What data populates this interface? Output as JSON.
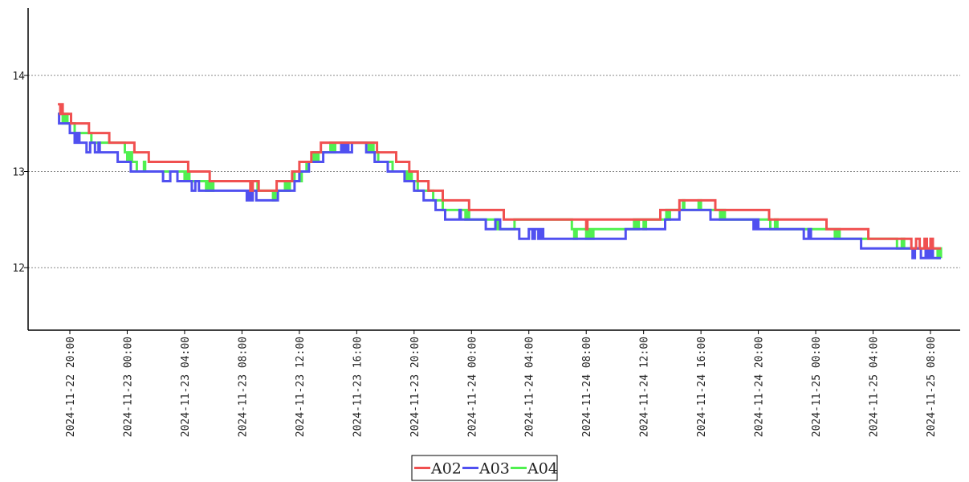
{
  "chart_data": {
    "type": "line",
    "step": true,
    "xlabel": "",
    "ylabel": "",
    "x_unit": "datetime",
    "x_range": [
      "2024-11-22 18:51",
      "2024-11-25 08:44"
    ],
    "ylim": [
      11.35,
      14.7
    ],
    "y_ticks": [
      12,
      13,
      14
    ],
    "x_ticks": [
      "2024-11-22 20:00",
      "2024-11-23 00:00",
      "2024-11-23 04:00",
      "2024-11-23 08:00",
      "2024-11-23 12:00",
      "2024-11-23 16:00",
      "2024-11-23 20:00",
      "2024-11-24 00:00",
      "2024-11-24 04:00",
      "2024-11-24 08:00",
      "2024-11-24 12:00",
      "2024-11-24 16:00",
      "2024-11-24 20:00",
      "2024-11-25 00:00",
      "2024-11-25 04:00",
      "2024-11-25 08:00"
    ],
    "grid": "horizontal-dotted",
    "legend": "bottom-center",
    "series": [
      {
        "name": "A02",
        "color": "#f05050",
        "points": [
          [
            "2024-11-22 19:10",
            13.7
          ],
          [
            "2024-11-22 19:20",
            13.6
          ],
          [
            "2024-11-22 19:25",
            13.7
          ],
          [
            "2024-11-22 19:30",
            13.6
          ],
          [
            "2024-11-22 20:05",
            13.5
          ],
          [
            "2024-11-22 21:20",
            13.4
          ],
          [
            "2024-11-22 22:45",
            13.3
          ],
          [
            "2024-11-23 00:30",
            13.2
          ],
          [
            "2024-11-23 01:30",
            13.1
          ],
          [
            "2024-11-23 04:15",
            13.0
          ],
          [
            "2024-11-23 05:45",
            12.9
          ],
          [
            "2024-11-23 08:35",
            12.8
          ],
          [
            "2024-11-23 08:45",
            12.9
          ],
          [
            "2024-11-23 09:10",
            12.8
          ],
          [
            "2024-11-23 09:50",
            12.8
          ],
          [
            "2024-11-23 10:25",
            12.9
          ],
          [
            "2024-11-23 11:30",
            13.0
          ],
          [
            "2024-11-23 12:00",
            13.1
          ],
          [
            "2024-11-23 12:50",
            13.2
          ],
          [
            "2024-11-23 13:30",
            13.3
          ],
          [
            "2024-11-23 17:25",
            13.2
          ],
          [
            "2024-11-23 18:45",
            13.1
          ],
          [
            "2024-11-23 19:40",
            13.0
          ],
          [
            "2024-11-23 20:15",
            12.9
          ],
          [
            "2024-11-23 21:00",
            12.8
          ],
          [
            "2024-11-23 22:00",
            12.7
          ],
          [
            "2024-11-23 23:50",
            12.6
          ],
          [
            "2024-11-24 02:15",
            12.5
          ],
          [
            "2024-11-24 02:40",
            12.5
          ],
          [
            "2024-11-24 08:00",
            12.4
          ],
          [
            "2024-11-24 08:05",
            12.5
          ],
          [
            "2024-11-24 13:10",
            12.6
          ],
          [
            "2024-11-24 14:30",
            12.7
          ],
          [
            "2024-11-24 17:00",
            12.6
          ],
          [
            "2024-11-24 20:45",
            12.5
          ],
          [
            "2024-11-25 00:45",
            12.4
          ],
          [
            "2024-11-25 03:40",
            12.3
          ],
          [
            "2024-11-25 06:40",
            12.2
          ],
          [
            "2024-11-25 07:00",
            12.3
          ],
          [
            "2024-11-25 07:15",
            12.2
          ],
          [
            "2024-11-25 07:35",
            12.3
          ],
          [
            "2024-11-25 07:45",
            12.2
          ],
          [
            "2024-11-25 08:00",
            12.3
          ],
          [
            "2024-11-25 08:10",
            12.2
          ],
          [
            "2024-11-25 08:44",
            12.2
          ]
        ]
      },
      {
        "name": "A03",
        "color": "#5050f0",
        "points": [
          [
            "2024-11-22 19:10",
            13.6
          ],
          [
            "2024-11-22 19:15",
            13.5
          ],
          [
            "2024-11-22 20:00",
            13.4
          ],
          [
            "2024-11-22 20:20",
            13.3
          ],
          [
            "2024-11-22 20:30",
            13.4
          ],
          [
            "2024-11-22 20:40",
            13.3
          ],
          [
            "2024-11-22 21:10",
            13.2
          ],
          [
            "2024-11-22 21:25",
            13.3
          ],
          [
            "2024-11-22 21:45",
            13.2
          ],
          [
            "2024-11-22 22:00",
            13.3
          ],
          [
            "2024-11-22 22:05",
            13.2
          ],
          [
            "2024-11-22 23:20",
            13.1
          ],
          [
            "2024-11-23 00:15",
            13.0
          ],
          [
            "2024-11-23 02:30",
            12.9
          ],
          [
            "2024-11-23 03:00",
            13.0
          ],
          [
            "2024-11-23 03:30",
            12.9
          ],
          [
            "2024-11-23 04:30",
            12.8
          ],
          [
            "2024-11-23 04:45",
            12.9
          ],
          [
            "2024-11-23 05:00",
            12.8
          ],
          [
            "2024-11-23 08:20",
            12.7
          ],
          [
            "2024-11-23 08:25",
            12.8
          ],
          [
            "2024-11-23 08:35",
            12.7
          ],
          [
            "2024-11-23 08:45",
            12.8
          ],
          [
            "2024-11-23 09:00",
            12.7
          ],
          [
            "2024-11-23 10:30",
            12.8
          ],
          [
            "2024-11-23 11:40",
            12.9
          ],
          [
            "2024-11-23 12:00",
            13.0
          ],
          [
            "2024-11-23 12:40",
            13.1
          ],
          [
            "2024-11-23 13:40",
            13.2
          ],
          [
            "2024-11-23 14:55",
            13.3
          ],
          [
            "2024-11-23 15:05",
            13.2
          ],
          [
            "2024-11-23 15:15",
            13.3
          ],
          [
            "2024-11-23 15:25",
            13.2
          ],
          [
            "2024-11-23 15:40",
            13.3
          ],
          [
            "2024-11-23 16:40",
            13.2
          ],
          [
            "2024-11-23 17:15",
            13.1
          ],
          [
            "2024-11-23 18:10",
            13.0
          ],
          [
            "2024-11-23 19:20",
            12.9
          ],
          [
            "2024-11-23 20:00",
            12.8
          ],
          [
            "2024-11-23 20:40",
            12.7
          ],
          [
            "2024-11-23 21:30",
            12.6
          ],
          [
            "2024-11-23 22:10",
            12.5
          ],
          [
            "2024-11-23 23:10",
            12.6
          ],
          [
            "2024-11-23 23:15",
            12.5
          ],
          [
            "2024-11-24 01:00",
            12.4
          ],
          [
            "2024-11-24 01:40",
            12.5
          ],
          [
            "2024-11-24 02:00",
            12.4
          ],
          [
            "2024-11-24 03:20",
            12.3
          ],
          [
            "2024-11-24 04:00",
            12.4
          ],
          [
            "2024-11-24 04:15",
            12.3
          ],
          [
            "2024-11-24 04:25",
            12.4
          ],
          [
            "2024-11-24 04:40",
            12.3
          ],
          [
            "2024-11-24 04:50",
            12.4
          ],
          [
            "2024-11-24 05:00",
            12.3
          ],
          [
            "2024-11-24 10:45",
            12.4
          ],
          [
            "2024-11-24 13:30",
            12.5
          ],
          [
            "2024-11-24 14:30",
            12.6
          ],
          [
            "2024-11-24 16:40",
            12.5
          ],
          [
            "2024-11-24 19:40",
            12.4
          ],
          [
            "2024-11-24 19:50",
            12.5
          ],
          [
            "2024-11-24 20:00",
            12.4
          ],
          [
            "2024-11-24 23:10",
            12.3
          ],
          [
            "2024-11-24 23:30",
            12.4
          ],
          [
            "2024-11-24 23:40",
            12.3
          ],
          [
            "2024-11-25 03:10",
            12.2
          ],
          [
            "2024-11-25 06:45",
            12.1
          ],
          [
            "2024-11-25 06:55",
            12.2
          ],
          [
            "2024-11-25 07:20",
            12.1
          ],
          [
            "2024-11-25 07:40",
            12.2
          ],
          [
            "2024-11-25 07:50",
            12.1
          ],
          [
            "2024-11-25 08:00",
            12.2
          ],
          [
            "2024-11-25 08:10",
            12.1
          ],
          [
            "2024-11-25 08:44",
            12.1
          ]
        ]
      },
      {
        "name": "A04",
        "color": "#50f050",
        "points": [
          [
            "2024-11-22 19:10",
            13.6
          ],
          [
            "2024-11-22 19:30",
            13.5
          ],
          [
            "2024-11-22 19:40",
            13.6
          ],
          [
            "2024-11-22 19:50",
            13.5
          ],
          [
            "2024-11-22 20:20",
            13.4
          ],
          [
            "2024-11-22 21:30",
            13.3
          ],
          [
            "2024-11-22 23:50",
            13.2
          ],
          [
            "2024-11-23 00:00",
            13.1
          ],
          [
            "2024-11-23 00:10",
            13.2
          ],
          [
            "2024-11-23 00:20",
            13.1
          ],
          [
            "2024-11-23 00:40",
            13.0
          ],
          [
            "2024-11-23 01:10",
            13.1
          ],
          [
            "2024-11-23 01:15",
            13.0
          ],
          [
            "2024-11-23 04:00",
            12.9
          ],
          [
            "2024-11-23 04:10",
            13.0
          ],
          [
            "2024-11-23 04:20",
            12.9
          ],
          [
            "2024-11-23 05:30",
            12.8
          ],
          [
            "2024-11-23 05:40",
            12.9
          ],
          [
            "2024-11-23 05:50",
            12.8
          ],
          [
            "2024-11-23 06:00",
            12.9
          ],
          [
            "2024-11-23 09:05",
            12.8
          ],
          [
            "2024-11-23 10:10",
            12.7
          ],
          [
            "2024-11-23 10:20",
            12.8
          ],
          [
            "2024-11-23 10:30",
            12.8
          ],
          [
            "2024-11-23 11:00",
            12.9
          ],
          [
            "2024-11-23 11:10",
            12.8
          ],
          [
            "2024-11-23 11:20",
            12.9
          ],
          [
            "2024-11-23 11:40",
            13.0
          ],
          [
            "2024-11-23 12:00",
            12.9
          ],
          [
            "2024-11-23 12:10",
            13.0
          ],
          [
            "2024-11-23 12:30",
            13.1
          ],
          [
            "2024-11-23 13:00",
            13.2
          ],
          [
            "2024-11-23 13:10",
            13.1
          ],
          [
            "2024-11-23 13:20",
            13.2
          ],
          [
            "2024-11-23 14:10",
            13.3
          ],
          [
            "2024-11-23 14:20",
            13.2
          ],
          [
            "2024-11-23 14:30",
            13.3
          ],
          [
            "2024-11-23 16:50",
            13.2
          ],
          [
            "2024-11-23 17:00",
            13.3
          ],
          [
            "2024-11-23 17:10",
            13.2
          ],
          [
            "2024-11-23 17:30",
            13.1
          ],
          [
            "2024-11-23 18:30",
            13.0
          ],
          [
            "2024-11-23 19:30",
            12.9
          ],
          [
            "2024-11-23 19:40",
            13.0
          ],
          [
            "2024-11-23 19:50",
            12.9
          ],
          [
            "2024-11-23 20:15",
            12.8
          ],
          [
            "2024-11-23 21:20",
            12.7
          ],
          [
            "2024-11-23 22:00",
            12.6
          ],
          [
            "2024-11-23 23:35",
            12.5
          ],
          [
            "2024-11-23 23:45",
            12.6
          ],
          [
            "2024-11-23 23:50",
            12.5
          ],
          [
            "2024-11-24 01:50",
            12.4
          ],
          [
            "2024-11-24 03:00",
            12.5
          ],
          [
            "2024-11-24 07:00",
            12.4
          ],
          [
            "2024-11-24 07:10",
            12.3
          ],
          [
            "2024-11-24 07:20",
            12.4
          ],
          [
            "2024-11-24 08:00",
            12.3
          ],
          [
            "2024-11-24 08:10",
            12.4
          ],
          [
            "2024-11-24 08:20",
            12.3
          ],
          [
            "2024-11-24 08:30",
            12.4
          ],
          [
            "2024-11-24 11:20",
            12.5
          ],
          [
            "2024-11-24 11:30",
            12.4
          ],
          [
            "2024-11-24 11:40",
            12.5
          ],
          [
            "2024-11-24 12:00",
            12.4
          ],
          [
            "2024-11-24 12:10",
            12.5
          ],
          [
            "2024-11-24 13:35",
            12.6
          ],
          [
            "2024-11-24 13:40",
            12.5
          ],
          [
            "2024-11-24 13:50",
            12.6
          ],
          [
            "2024-11-24 14:45",
            12.7
          ],
          [
            "2024-11-24 14:50",
            12.6
          ],
          [
            "2024-11-24 15:50",
            12.7
          ],
          [
            "2024-11-24 16:00",
            12.6
          ],
          [
            "2024-11-24 17:20",
            12.5
          ],
          [
            "2024-11-24 17:30",
            12.6
          ],
          [
            "2024-11-24 17:40",
            12.5
          ],
          [
            "2024-11-24 20:50",
            12.4
          ],
          [
            "2024-11-24 21:10",
            12.5
          ],
          [
            "2024-11-24 21:20",
            12.4
          ],
          [
            "2024-11-25 01:20",
            12.3
          ],
          [
            "2024-11-25 01:30",
            12.4
          ],
          [
            "2024-11-25 01:40",
            12.3
          ],
          [
            "2024-11-25 05:40",
            12.2
          ],
          [
            "2024-11-25 06:00",
            12.3
          ],
          [
            "2024-11-25 06:10",
            12.2
          ],
          [
            "2024-11-25 08:30",
            12.1
          ],
          [
            "2024-11-25 08:35",
            12.2
          ],
          [
            "2024-11-25 08:44",
            12.1
          ]
        ]
      }
    ]
  }
}
